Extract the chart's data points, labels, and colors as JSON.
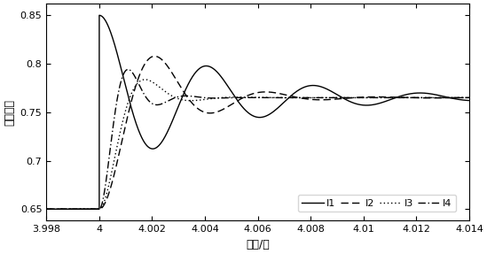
{
  "xlabel": "时间/秒",
  "ylabel": "单位电流",
  "xlim": [
    3.998,
    4.014
  ],
  "ylim": [
    0.638,
    0.862
  ],
  "yticks": [
    0.65,
    0.7,
    0.75,
    0.8,
    0.85
  ],
  "xticks": [
    3.998,
    4.0,
    4.002,
    4.004,
    4.006,
    4.008,
    4.01,
    4.012,
    4.014
  ],
  "xtick_labels": [
    "3.998",
    "4",
    "4.002",
    "4.004",
    "4.006",
    "4.008",
    "4.01",
    "4.012",
    "4.014"
  ],
  "steady": 0.765,
  "init": 0.65,
  "t_switch": 4.0,
  "legend_labels": [
    "I1",
    "I2",
    "I3",
    "I4"
  ],
  "linewidth": 1.0,
  "tick_fontsize": 8,
  "label_fontsize": 9,
  "legend_fontsize": 8
}
